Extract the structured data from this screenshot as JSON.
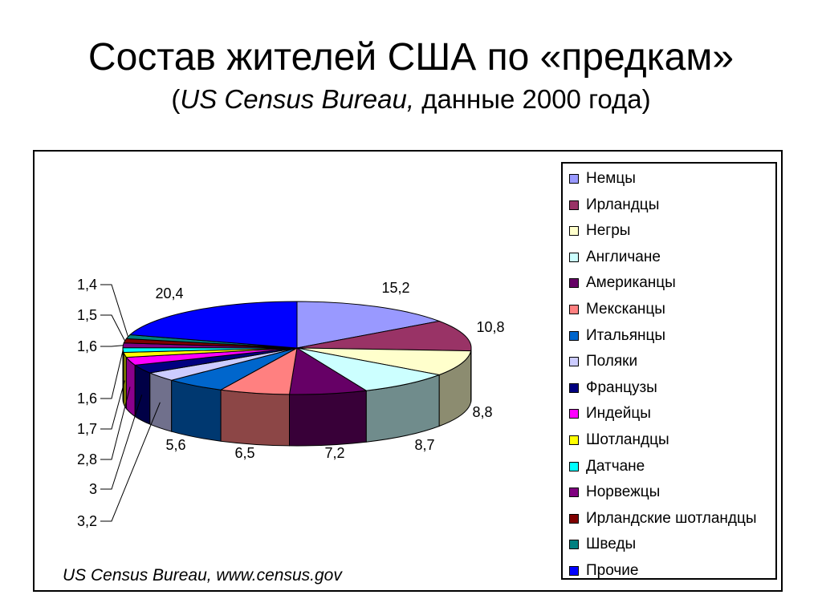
{
  "title": "Состав жителей США по «предкам»",
  "subtitle": {
    "open": "(",
    "source": "US Census Bureau,",
    "rest": " данные 2000 года)"
  },
  "source_note": "US Census Bureau, www.census.gov",
  "chart_data": {
    "type": "pie",
    "style": "3d-exploded-slices",
    "legend_position": "right",
    "slices": [
      {
        "name": "Немцы",
        "value": 15.2,
        "label": "15,2",
        "color": "#9999FF"
      },
      {
        "name": "Ирландцы",
        "value": 10.8,
        "label": "10,8",
        "color": "#993366"
      },
      {
        "name": "Негры",
        "value": 8.8,
        "label": "8,8",
        "color": "#FFFFCC"
      },
      {
        "name": "Англичане",
        "value": 8.7,
        "label": "8,7",
        "color": "#CCFFFF"
      },
      {
        "name": "Американцы",
        "value": 7.2,
        "label": "7,2",
        "color": "#660066"
      },
      {
        "name": "Мексканцы",
        "value": 6.5,
        "label": "6,5",
        "color": "#FF8080"
      },
      {
        "name": "Итальянцы",
        "value": 5.6,
        "label": "5,6",
        "color": "#0066CC"
      },
      {
        "name": "Поляки",
        "value": 3.2,
        "label": "3,2",
        "color": "#CCCCFF"
      },
      {
        "name": "Французы",
        "value": 3.0,
        "label": "3",
        "color": "#000080"
      },
      {
        "name": "Индейцы",
        "value": 2.8,
        "label": "2,8",
        "color": "#FF00FF"
      },
      {
        "name": "Шотландцы",
        "value": 1.7,
        "label": "1,7",
        "color": "#FFFF00"
      },
      {
        "name": "Датчане",
        "value": 1.6,
        "label": "1,6",
        "color": "#00FFFF"
      },
      {
        "name": "Норвежцы",
        "value": 1.6,
        "label": "1,6",
        "color": "#800080"
      },
      {
        "name": "Ирландские шотландцы",
        "value": 1.5,
        "label": "1,5",
        "color": "#800000"
      },
      {
        "name": "Шведы",
        "value": 1.4,
        "label": "1,4",
        "color": "#008080"
      },
      {
        "name": "Прочие",
        "value": 20.4,
        "label": "20,4",
        "color": "#0000FF"
      }
    ]
  }
}
